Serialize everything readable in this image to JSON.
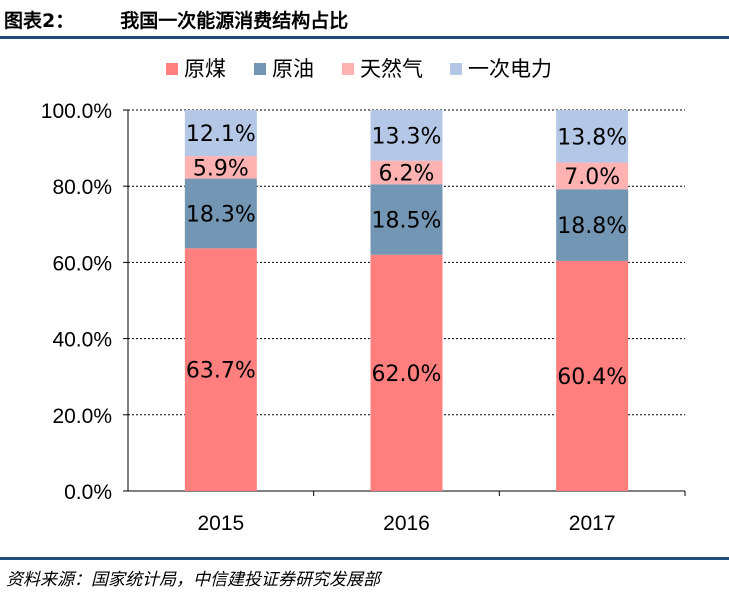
{
  "header": {
    "figure_label": "图表2：",
    "title": "我国一次能源消费结构占比"
  },
  "source": "资料来源：国家统计局，中信建投证券研究发展部",
  "colors": {
    "rule": "#1f4e79",
    "coal": "#ff7f7f",
    "oil": "#7496b5",
    "gas": "#ffb2b2",
    "primary_electricity": "#b4c7e7"
  },
  "chart_data": {
    "type": "bar",
    "stacked": true,
    "categories": [
      "2015",
      "2016",
      "2017"
    ],
    "series": [
      {
        "name": "原煤",
        "values": [
          63.7,
          62.0,
          60.4
        ],
        "labels": [
          "63.7%",
          "62.0%",
          "60.4%"
        ],
        "color": "#ff7f7f"
      },
      {
        "name": "原油",
        "values": [
          18.3,
          18.5,
          18.8
        ],
        "labels": [
          "18.3%",
          "18.5%",
          "18.8%"
        ],
        "color": "#7496b5"
      },
      {
        "name": "天然气",
        "values": [
          5.9,
          6.2,
          7.0
        ],
        "labels": [
          "5.9%",
          "6.2%",
          "7.0%"
        ],
        "color": "#ffb2b2"
      },
      {
        "name": "一次电力",
        "values": [
          12.1,
          13.3,
          13.8
        ],
        "labels": [
          "12.1%",
          "13.3%",
          "13.8%"
        ],
        "color": "#b4c7e7"
      }
    ],
    "ylim": [
      0,
      100
    ],
    "yticks": [
      "0.0%",
      "20.0%",
      "40.0%",
      "60.0%",
      "80.0%",
      "100.0%"
    ],
    "ytick_values": [
      0,
      20,
      40,
      60,
      80,
      100
    ],
    "grid": true,
    "legend_position": "top"
  }
}
